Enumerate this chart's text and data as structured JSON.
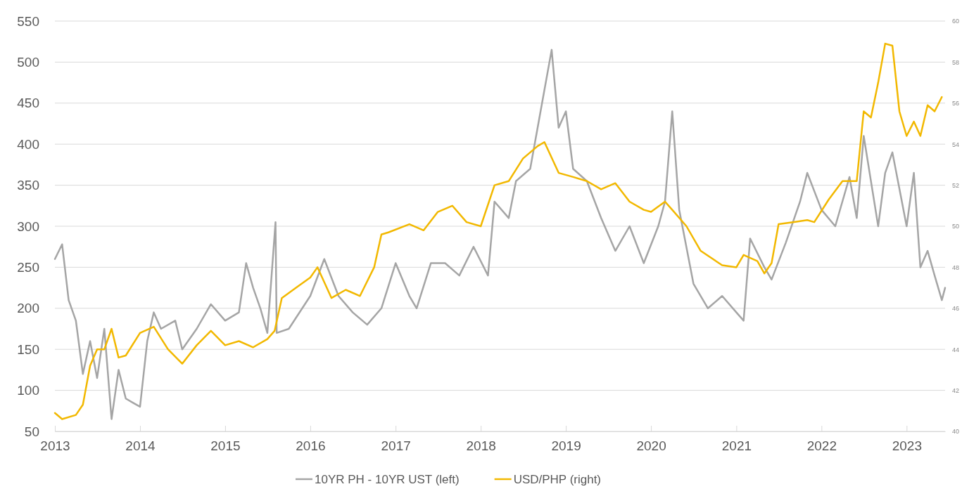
{
  "chart_data": {
    "type": "line",
    "legend": "bottom",
    "grid": "y",
    "xlim": [
      "2013-01",
      "2023-06-15"
    ],
    "xticks": [
      "2013",
      "2014",
      "2015",
      "2016",
      "2017",
      "2018",
      "2019",
      "2020",
      "2021",
      "2022",
      "2023"
    ],
    "ylim": [
      50,
      550
    ],
    "yticks": [
      50,
      100,
      150,
      200,
      250,
      300,
      350,
      400,
      450,
      500,
      550
    ],
    "y2lim": [
      40,
      60
    ],
    "y2ticks": [
      40,
      42,
      44,
      46,
      48,
      50,
      52,
      54,
      56,
      58,
      60
    ],
    "series": [
      {
        "name": "10YR PH - 10YR UST (left)",
        "color": "#a5a5a5",
        "x": [
          "2013-01",
          "2013-02",
          "2013-03",
          "2013-04",
          "2013-05",
          "2013-06",
          "2013-07",
          "2013-08",
          "2013-09",
          "2013-10",
          "2013-11",
          "2013-12",
          "2014-01",
          "2014-02",
          "2014-03",
          "2014-04",
          "2014-06",
          "2014-07",
          "2014-09",
          "2014-11",
          "2015-01",
          "2015-03",
          "2015-04",
          "2015-05",
          "2015-06",
          "2015-07",
          "2015-08-05",
          "2015-08-10",
          "2015-10",
          "2016-01",
          "2016-03",
          "2016-05",
          "2016-07",
          "2016-09",
          "2016-11",
          "2017-01",
          "2017-03",
          "2017-04",
          "2017-06",
          "2017-08",
          "2017-10",
          "2017-12",
          "2018-02",
          "2018-03",
          "2018-05",
          "2018-06",
          "2018-08",
          "2018-11",
          "2018-12",
          "2019-01",
          "2019-02",
          "2019-04",
          "2019-06",
          "2019-08",
          "2019-10",
          "2019-12",
          "2020-02",
          "2020-03",
          "2020-04",
          "2020-05",
          "2020-07",
          "2020-09",
          "2020-11",
          "2021-01",
          "2021-02",
          "2021-03",
          "2021-05",
          "2021-06",
          "2021-08",
          "2021-10",
          "2021-11",
          "2022-01",
          "2022-03",
          "2022-05",
          "2022-06",
          "2022-07",
          "2022-09",
          "2022-10",
          "2022-11",
          "2023-01",
          "2023-02",
          "2023-03",
          "2023-04",
          "2023-05",
          "2023-06",
          "2023-06-15"
        ],
        "values": [
          260,
          278,
          210,
          185,
          120,
          160,
          115,
          175,
          65,
          125,
          90,
          85,
          80,
          160,
          195,
          175,
          185,
          150,
          175,
          205,
          185,
          195,
          255,
          225,
          200,
          170,
          305,
          170,
          175,
          215,
          260,
          215,
          195,
          180,
          200,
          255,
          215,
          200,
          255,
          255,
          240,
          275,
          240,
          330,
          310,
          355,
          370,
          515,
          420,
          440,
          370,
          355,
          310,
          270,
          300,
          255,
          300,
          330,
          440,
          320,
          230,
          200,
          215,
          195,
          185,
          285,
          250,
          235,
          280,
          330,
          365,
          320,
          300,
          360,
          310,
          410,
          300,
          365,
          390,
          300,
          365,
          250,
          270,
          240,
          210,
          225
        ]
      },
      {
        "name": "USD/PHP (right)",
        "color": "#f2b800",
        "axis": "y2",
        "x": [
          "2013-01",
          "2013-02",
          "2013-04",
          "2013-05",
          "2013-06",
          "2013-07",
          "2013-08",
          "2013-09",
          "2013-10",
          "2013-11",
          "2014-01",
          "2014-03",
          "2014-05",
          "2014-07",
          "2014-09",
          "2014-11",
          "2015-01",
          "2015-03",
          "2015-05",
          "2015-07",
          "2015-08",
          "2015-09",
          "2015-11",
          "2016-01",
          "2016-02",
          "2016-04",
          "2016-06",
          "2016-08",
          "2016-10",
          "2016-11",
          "2016-12",
          "2017-03",
          "2017-05",
          "2017-07",
          "2017-09",
          "2017-11",
          "2018-01",
          "2018-03",
          "2018-05",
          "2018-07",
          "2018-09",
          "2018-10",
          "2018-12",
          "2019-02",
          "2019-04",
          "2019-06",
          "2019-08",
          "2019-10",
          "2019-12",
          "2020-01",
          "2020-03",
          "2020-04",
          "2020-06",
          "2020-08",
          "2020-11",
          "2021-01",
          "2021-02",
          "2021-04",
          "2021-05",
          "2021-06",
          "2021-07",
          "2021-09",
          "2021-11",
          "2021-12",
          "2022-02",
          "2022-04",
          "2022-06",
          "2022-07",
          "2022-08",
          "2022-09",
          "2022-10",
          "2022-11",
          "2022-12",
          "2023-01",
          "2023-02",
          "2023-03",
          "2023-04",
          "2023-05",
          "2023-06"
        ],
        "values": [
          40.9,
          40.6,
          40.8,
          41.3,
          43.2,
          44.0,
          44.0,
          45.0,
          43.6,
          43.7,
          44.8,
          45.1,
          44.0,
          43.3,
          44.2,
          44.9,
          44.2,
          44.4,
          44.1,
          44.5,
          44.9,
          46.5,
          47.0,
          47.5,
          48.0,
          46.5,
          46.9,
          46.6,
          48.0,
          49.6,
          49.7,
          50.1,
          49.8,
          50.7,
          51.0,
          50.2,
          50.0,
          52.0,
          52.2,
          53.3,
          53.9,
          54.1,
          52.6,
          52.4,
          52.2,
          51.8,
          52.1,
          51.2,
          50.8,
          50.7,
          51.2,
          50.8,
          50.0,
          48.8,
          48.1,
          48.0,
          48.6,
          48.3,
          47.7,
          48.2,
          50.1,
          50.2,
          50.3,
          50.2,
          51.3,
          52.2,
          52.2,
          55.6,
          55.3,
          57.0,
          58.9,
          58.8,
          55.6,
          54.4,
          55.1,
          54.4,
          55.9,
          55.6,
          56.3
        ]
      }
    ]
  }
}
